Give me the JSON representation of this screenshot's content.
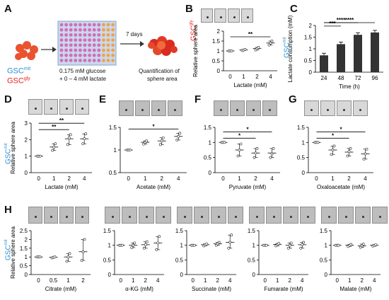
{
  "colors": {
    "mit": "#2b8fcf",
    "gly": "#e8231f",
    "bar": "#333333",
    "axis": "#000000"
  },
  "letters": [
    "A",
    "B",
    "C",
    "D",
    "E",
    "F",
    "G",
    "H"
  ],
  "schematic": {
    "gsc_main": "GSC",
    "mit_sup": "mit",
    "gly_sup": "gly",
    "days": "7 days",
    "medium_line1": "0.175 mM glucose",
    "medium_line2": "+ 0 – 4 mM lactate",
    "quant_line1": "Quantification of",
    "quant_line2": "sphere area"
  },
  "chart_data": [
    {
      "id": "B",
      "type": "scatter",
      "xlabel": "Lactate (mM)",
      "ylabel": "Relative sphere area",
      "categories": [
        "0",
        "1",
        "2",
        "4"
      ],
      "ylim": [
        0,
        2
      ],
      "yticks": [
        0,
        0.5,
        1,
        1.5,
        2
      ],
      "mean": [
        1.0,
        1.05,
        1.12,
        1.4
      ],
      "points": [
        [
          1.0,
          1.0,
          1.0
        ],
        [
          1.02,
          1.05,
          1.08
        ],
        [
          1.05,
          1.12,
          1.18
        ],
        [
          1.3,
          1.4,
          1.5
        ]
      ],
      "sig": [
        {
          "from": 0,
          "to": 3,
          "label": "**"
        }
      ],
      "group": "gly"
    },
    {
      "id": "C",
      "type": "bar",
      "xlabel": "Time (h)",
      "ylabel": "Lactate consumption (mM)",
      "categories": [
        "24",
        "48",
        "72",
        "96"
      ],
      "ylim": [
        0,
        2
      ],
      "yticks": [
        0,
        0.5,
        1,
        1.5,
        2
      ],
      "values": [
        0.72,
        1.2,
        1.6,
        1.7
      ],
      "sig": [
        {
          "from": 0,
          "to": 1,
          "label": "***"
        },
        {
          "from": 0,
          "to": 2,
          "label": "****"
        },
        {
          "from": 0,
          "to": 3,
          "label": "****"
        }
      ],
      "group": "mit"
    },
    {
      "id": "D",
      "type": "scatter",
      "xlabel": "Lactate (mM)",
      "ylabel": "Relative sphere area",
      "categories": [
        "0",
        "1",
        "2",
        "4"
      ],
      "ylim": [
        0,
        3
      ],
      "yticks": [
        0,
        1,
        2,
        3
      ],
      "mean": [
        1.0,
        1.55,
        2.05,
        2.05
      ],
      "points": [
        [
          1.0,
          1.0,
          1.0
        ],
        [
          1.35,
          1.55,
          1.75
        ],
        [
          1.7,
          2.1,
          2.3
        ],
        [
          1.75,
          2.05,
          2.35
        ]
      ],
      "sig": [
        {
          "from": 0,
          "to": 2,
          "label": "**"
        },
        {
          "from": 0,
          "to": 3,
          "label": "**"
        }
      ],
      "group": "mit"
    },
    {
      "id": "E",
      "type": "scatter",
      "xlabel": "Acetate (mM)",
      "ylabel": "",
      "categories": [
        "0",
        "1",
        "2",
        "4"
      ],
      "ylim": [
        0.5,
        1.5
      ],
      "yticks": [
        0.5,
        1,
        1.5
      ],
      "mean": [
        1.0,
        1.17,
        1.2,
        1.3
      ],
      "points": [
        [
          1.0,
          1.0,
          1.0
        ],
        [
          1.13,
          1.17,
          1.2
        ],
        [
          1.12,
          1.2,
          1.27
        ],
        [
          1.22,
          1.3,
          1.37
        ]
      ],
      "sig": [
        {
          "from": 0,
          "to": 3,
          "label": "*"
        }
      ],
      "group": "mit"
    },
    {
      "id": "F",
      "type": "scatter",
      "xlabel": "Pyruvate (mM)",
      "ylabel": "",
      "categories": [
        "0",
        "1",
        "2",
        "4"
      ],
      "ylim": [
        0,
        1.5
      ],
      "yticks": [
        0,
        0.5,
        1,
        1.5
      ],
      "mean": [
        1.0,
        0.75,
        0.65,
        0.65
      ],
      "points": [
        [
          1.0,
          1.0,
          1.0
        ],
        [
          0.55,
          0.75,
          0.95
        ],
        [
          0.5,
          0.65,
          0.8
        ],
        [
          0.5,
          0.62,
          0.8
        ]
      ],
      "sig": [
        {
          "from": 0,
          "to": 2,
          "label": "*"
        },
        {
          "from": 0,
          "to": 3,
          "label": "*"
        }
      ],
      "group": "mit"
    },
    {
      "id": "G",
      "type": "scatter",
      "xlabel": "Oxaloacetate (mM)",
      "ylabel": "",
      "categories": [
        "0",
        "1",
        "2",
        "4"
      ],
      "ylim": [
        0,
        1.5
      ],
      "yticks": [
        0,
        0.5,
        1,
        1.5
      ],
      "mean": [
        1.0,
        0.75,
        0.68,
        0.62
      ],
      "points": [
        [
          1.0,
          1.0,
          1.0
        ],
        [
          0.6,
          0.75,
          0.88
        ],
        [
          0.55,
          0.7,
          0.8
        ],
        [
          0.45,
          0.62,
          0.78
        ]
      ],
      "sig": [
        {
          "from": 0,
          "to": 2,
          "label": "*"
        },
        {
          "from": 0,
          "to": 3,
          "label": "*"
        }
      ],
      "group": "mit"
    },
    {
      "id": "H1",
      "type": "scatter",
      "xlabel": "Citrate (mM)",
      "ylabel": "Relative sphere area",
      "categories": [
        "0",
        "0.5",
        "1",
        "2"
      ],
      "ylim": [
        0,
        2.5
      ],
      "yticks": [
        0,
        0.5,
        1,
        1.5,
        2,
        2.5
      ],
      "mean": [
        1.0,
        0.98,
        1.0,
        1.3
      ],
      "points": [
        [
          1.0,
          1.0,
          1.0
        ],
        [
          0.95,
          0.98,
          1.0
        ],
        [
          0.75,
          1.0,
          1.2
        ],
        [
          0.8,
          1.3,
          2.0
        ]
      ],
      "sig": [],
      "group": "mit"
    },
    {
      "id": "H2",
      "type": "scatter",
      "xlabel": "α-KG (mM)",
      "ylabel": "",
      "categories": [
        "0",
        "1",
        "2",
        "4"
      ],
      "ylim": [
        0,
        1.5
      ],
      "yticks": [
        0,
        0.5,
        1,
        1.5
      ],
      "mean": [
        1.0,
        1.0,
        1.02,
        1.08
      ],
      "points": [
        [
          1.0,
          1.0,
          1.0
        ],
        [
          0.92,
          1.0,
          1.08
        ],
        [
          0.9,
          1.02,
          1.12
        ],
        [
          0.85,
          1.08,
          1.3
        ]
      ],
      "sig": [],
      "group": "mit"
    },
    {
      "id": "H3",
      "type": "scatter",
      "xlabel": "Succinate (mM)",
      "ylabel": "",
      "categories": [
        "0",
        "1",
        "2",
        "4"
      ],
      "ylim": [
        0,
        1.5
      ],
      "yticks": [
        0,
        0.5,
        1,
        1.5
      ],
      "mean": [
        1.0,
        1.02,
        1.05,
        1.1
      ],
      "points": [
        [
          1.0,
          1.0,
          1.0
        ],
        [
          0.98,
          1.02,
          1.05
        ],
        [
          1.0,
          1.05,
          1.1
        ],
        [
          0.9,
          1.1,
          1.35
        ]
      ],
      "sig": [],
      "group": "mit"
    },
    {
      "id": "H4",
      "type": "scatter",
      "xlabel": "Fumarate (mM)",
      "ylabel": "",
      "categories": [
        "0",
        "1",
        "2",
        "4"
      ],
      "ylim": [
        0,
        1.5
      ],
      "yticks": [
        0,
        0.5,
        1,
        1.5
      ],
      "mean": [
        1.0,
        1.03,
        1.0,
        1.02
      ],
      "points": [
        [
          1.0,
          1.0,
          1.0
        ],
        [
          0.98,
          1.03,
          1.06
        ],
        [
          0.9,
          1.0,
          1.08
        ],
        [
          0.9,
          1.02,
          1.1
        ]
      ],
      "sig": [],
      "group": "mit"
    },
    {
      "id": "H5",
      "type": "scatter",
      "xlabel": "Malate (mM)",
      "ylabel": "",
      "categories": [
        "0",
        "1",
        "2",
        "4"
      ],
      "ylim": [
        0,
        1.5
      ],
      "yticks": [
        0,
        0.5,
        1,
        1.5
      ],
      "mean": [
        1.0,
        1.0,
        0.98,
        1.0
      ],
      "points": [
        [
          1.0,
          1.0,
          1.0
        ],
        [
          0.96,
          1.0,
          1.03
        ],
        [
          0.93,
          0.98,
          1.04
        ],
        [
          0.97,
          1.0,
          1.02
        ]
      ],
      "sig": [],
      "group": "mit"
    }
  ]
}
